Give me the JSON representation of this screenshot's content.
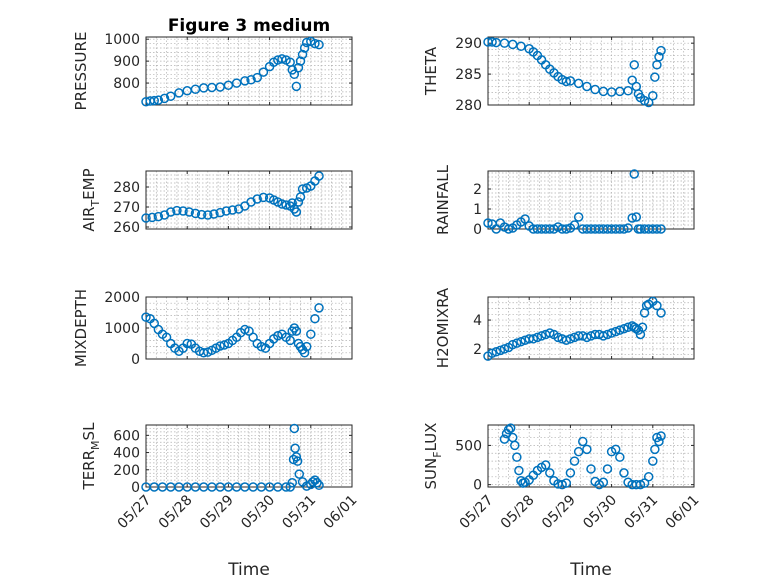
{
  "chart_data": [
    {
      "type": "scatter",
      "title": "Figure 3 medium",
      "ylabel": "PRESSURE",
      "ylabel_sub": "",
      "ylim": [
        700,
        1010
      ],
      "yticks": [
        800,
        900,
        1000
      ],
      "xlim": [
        0,
        5
      ],
      "xticks": [
        0,
        1,
        2,
        3,
        4,
        5
      ],
      "xticklabels": [],
      "xlabel": "",
      "grid": true,
      "series": [
        {
          "x": [
            0,
            0.1,
            0.2,
            0.3,
            0.45,
            0.6,
            0.8,
            1.0,
            1.2,
            1.4,
            1.6,
            1.8,
            2.0,
            2.2,
            2.4,
            2.55,
            2.7,
            2.85,
            3.0,
            3.1,
            3.2,
            3.3,
            3.4,
            3.5,
            3.55,
            3.6,
            3.65,
            3.7,
            3.75,
            3.8,
            3.85,
            3.9,
            4.0,
            4.1,
            4.2
          ],
          "y": [
            715,
            718,
            720,
            722,
            730,
            740,
            755,
            765,
            772,
            778,
            780,
            782,
            790,
            800,
            810,
            815,
            825,
            850,
            875,
            895,
            905,
            910,
            905,
            895,
            860,
            840,
            785,
            870,
            900,
            930,
            960,
            985,
            990,
            980,
            975
          ]
        }
      ]
    },
    {
      "type": "scatter",
      "title": "",
      "ylabel": "THETA",
      "ylabel_sub": "",
      "ylim": [
        280,
        291
      ],
      "yticks": [
        280,
        285,
        290
      ],
      "xlim": [
        0,
        5
      ],
      "xticks": [
        0,
        1,
        2,
        3,
        4,
        5
      ],
      "xticklabels": [],
      "xlabel": "",
      "grid": true,
      "series": [
        {
          "x": [
            0,
            0.1,
            0.2,
            0.4,
            0.6,
            0.8,
            1.0,
            1.1,
            1.2,
            1.3,
            1.4,
            1.5,
            1.6,
            1.7,
            1.8,
            1.9,
            2.0,
            2.2,
            2.4,
            2.6,
            2.8,
            3.0,
            3.2,
            3.4,
            3.5,
            3.55,
            3.6,
            3.65,
            3.7,
            3.8,
            3.9,
            4.0,
            4.05,
            4.1,
            4.15,
            4.2
          ],
          "y": [
            290.2,
            290.2,
            290.1,
            290.0,
            289.8,
            289.5,
            289.1,
            288.6,
            288.0,
            287.3,
            286.5,
            285.8,
            285.2,
            284.6,
            284.1,
            283.8,
            283.9,
            283.5,
            283.0,
            282.5,
            282.2,
            282.1,
            282.2,
            282.3,
            284.0,
            286.5,
            283.0,
            281.8,
            281.2,
            280.7,
            280.4,
            281.5,
            284.5,
            286.5,
            287.8,
            288.8
          ]
        }
      ]
    },
    {
      "type": "scatter",
      "title": "",
      "ylabel": "AIR",
      "ylabel_sub": "T",
      "ylabel_tail": "EMP",
      "ylim": [
        259,
        288
      ],
      "yticks": [
        260,
        270,
        280
      ],
      "xlim": [
        0,
        5
      ],
      "xticks": [
        0,
        1,
        2,
        3,
        4,
        5
      ],
      "xticklabels": [],
      "xlabel": "",
      "grid": true,
      "series": [
        {
          "x": [
            0,
            0.15,
            0.3,
            0.45,
            0.6,
            0.75,
            0.9,
            1.05,
            1.2,
            1.35,
            1.5,
            1.65,
            1.8,
            1.95,
            2.1,
            2.25,
            2.4,
            2.55,
            2.7,
            2.85,
            3.0,
            3.1,
            3.2,
            3.3,
            3.4,
            3.5,
            3.55,
            3.6,
            3.65,
            3.7,
            3.75,
            3.8,
            3.9,
            4.0,
            4.1,
            4.2
          ],
          "y": [
            264.5,
            264.8,
            265.2,
            266.0,
            267.5,
            268.2,
            268.0,
            267.5,
            266.8,
            266.2,
            266.0,
            266.5,
            267.2,
            268.0,
            268.5,
            269.0,
            270.5,
            272.5,
            274.0,
            274.8,
            274.5,
            273.5,
            272.5,
            271.5,
            271.0,
            270.5,
            272.0,
            269.0,
            267.5,
            272.5,
            275.0,
            279.0,
            279.5,
            280.5,
            283.0,
            285.5
          ]
        }
      ]
    },
    {
      "type": "scatter",
      "title": "",
      "ylabel": "RAINFALL",
      "ylabel_sub": "",
      "ylim": [
        0,
        2.9
      ],
      "yticks": [
        0,
        1,
        2
      ],
      "xlim": [
        0,
        5
      ],
      "xticks": [
        0,
        1,
        2,
        3,
        4,
        5
      ],
      "xticklabels": [],
      "xlabel": "",
      "grid": true,
      "series": [
        {
          "x": [
            0,
            0.1,
            0.2,
            0.3,
            0.4,
            0.5,
            0.6,
            0.7,
            0.8,
            0.9,
            1.0,
            1.1,
            1.2,
            1.3,
            1.4,
            1.5,
            1.6,
            1.7,
            1.8,
            1.9,
            2.0,
            2.1,
            2.2,
            2.3,
            2.4,
            2.5,
            2.6,
            2.7,
            2.8,
            2.9,
            3.0,
            3.1,
            3.2,
            3.3,
            3.4,
            3.5,
            3.55,
            3.6,
            3.65,
            3.7,
            3.8,
            3.9,
            4.0,
            4.1,
            4.2
          ],
          "y": [
            0.3,
            0.25,
            0.0,
            0.3,
            0.1,
            0.0,
            0.05,
            0.2,
            0.35,
            0.5,
            0.15,
            0.0,
            0.0,
            0.0,
            0.0,
            0.0,
            0.0,
            0.1,
            0.0,
            0.0,
            0.05,
            0.2,
            0.6,
            0.0,
            0.0,
            0.0,
            0.0,
            0.0,
            0.0,
            0.0,
            0.0,
            0.0,
            0.0,
            0.0,
            0.05,
            0.55,
            2.75,
            0.6,
            0.0,
            0.0,
            0.0,
            0.0,
            0.0,
            0.0,
            0.0
          ]
        }
      ]
    },
    {
      "type": "scatter",
      "title": "",
      "ylabel": "MIXDEPTH",
      "ylabel_sub": "",
      "ylim": [
        0,
        2000
      ],
      "yticks": [
        0,
        1000,
        2000
      ],
      "xlim": [
        0,
        5
      ],
      "xticks": [
        0,
        1,
        2,
        3,
        4,
        5
      ],
      "xticklabels": [],
      "xlabel": "",
      "grid": true,
      "series": [
        {
          "x": [
            0,
            0.1,
            0.2,
            0.3,
            0.4,
            0.5,
            0.6,
            0.7,
            0.8,
            0.9,
            1.0,
            1.1,
            1.2,
            1.3,
            1.4,
            1.5,
            1.6,
            1.7,
            1.8,
            1.9,
            2.0,
            2.1,
            2.2,
            2.3,
            2.4,
            2.5,
            2.6,
            2.7,
            2.8,
            2.9,
            3.0,
            3.1,
            3.2,
            3.3,
            3.4,
            3.5,
            3.55,
            3.6,
            3.65,
            3.7,
            3.75,
            3.8,
            3.85,
            3.9,
            4.0,
            4.1,
            4.2
          ],
          "y": [
            1350,
            1300,
            1150,
            950,
            800,
            700,
            500,
            350,
            250,
            350,
            500,
            480,
            350,
            250,
            200,
            220,
            280,
            350,
            420,
            450,
            500,
            600,
            700,
            850,
            950,
            900,
            700,
            500,
            400,
            350,
            500,
            650,
            750,
            800,
            700,
            600,
            900,
            1000,
            900,
            500,
            400,
            300,
            200,
            400,
            800,
            1300,
            1650
          ]
        }
      ]
    },
    {
      "type": "scatter",
      "title": "",
      "ylabel": "H2OMIXRA",
      "ylabel_sub": "",
      "ylim": [
        1.3,
        5.6
      ],
      "yticks": [
        2,
        4
      ],
      "xlim": [
        0,
        5
      ],
      "xticks": [
        0,
        1,
        2,
        3,
        4,
        5
      ],
      "xticklabels": [],
      "xlabel": "",
      "grid": true,
      "series": [
        {
          "x": [
            0,
            0.1,
            0.2,
            0.3,
            0.4,
            0.5,
            0.6,
            0.7,
            0.8,
            0.9,
            1.0,
            1.1,
            1.2,
            1.3,
            1.4,
            1.5,
            1.6,
            1.7,
            1.8,
            1.9,
            2.0,
            2.1,
            2.2,
            2.3,
            2.4,
            2.5,
            2.6,
            2.7,
            2.8,
            2.9,
            3.0,
            3.1,
            3.2,
            3.3,
            3.4,
            3.5,
            3.55,
            3.6,
            3.65,
            3.7,
            3.75,
            3.8,
            3.85,
            3.9,
            4.0,
            4.1,
            4.2
          ],
          "y": [
            1.5,
            1.7,
            1.8,
            1.9,
            2.0,
            2.1,
            2.3,
            2.4,
            2.5,
            2.6,
            2.7,
            2.7,
            2.8,
            2.9,
            3.0,
            3.1,
            3.0,
            2.8,
            2.7,
            2.6,
            2.7,
            2.8,
            2.9,
            2.9,
            2.8,
            2.9,
            3.0,
            3.0,
            2.9,
            3.0,
            3.1,
            3.2,
            3.3,
            3.4,
            3.5,
            3.6,
            3.5,
            3.4,
            3.3,
            3.0,
            3.5,
            4.5,
            5.0,
            5.1,
            5.3,
            5.0,
            4.5
          ]
        }
      ]
    },
    {
      "type": "scatter",
      "title": "",
      "ylabel": "TERR",
      "ylabel_sub": "M",
      "ylabel_tail": "SL",
      "ylim": [
        0,
        720
      ],
      "yticks": [
        0,
        200,
        400,
        600
      ],
      "xlim": [
        0,
        5
      ],
      "xticks": [
        0,
        1,
        2,
        3,
        4,
        5
      ],
      "xticklabels": [
        "05/27",
        "05/28",
        "05/29",
        "05/30",
        "05/31",
        "06/01"
      ],
      "xlabel": "Time",
      "grid": true,
      "series": [
        {
          "x": [
            0,
            0.2,
            0.4,
            0.6,
            0.8,
            1.0,
            1.2,
            1.4,
            1.6,
            1.8,
            2.0,
            2.2,
            2.4,
            2.6,
            2.8,
            3.0,
            3.2,
            3.4,
            3.5,
            3.55,
            3.58,
            3.6,
            3.62,
            3.65,
            3.68,
            3.72,
            3.8,
            3.9,
            4.0,
            4.05,
            4.1,
            4.15,
            4.2
          ],
          "y": [
            0,
            0,
            0,
            0,
            0,
            0,
            0,
            0,
            0,
            0,
            0,
            0,
            0,
            0,
            0,
            0,
            0,
            0,
            0,
            50,
            320,
            680,
            450,
            350,
            300,
            150,
            60,
            10,
            30,
            60,
            80,
            50,
            20
          ]
        }
      ]
    },
    {
      "type": "scatter",
      "title": "",
      "ylabel": "SUN",
      "ylabel_sub": "F",
      "ylabel_tail": "LUX",
      "ylim": [
        -30,
        760
      ],
      "yticks": [
        0,
        500
      ],
      "xlim": [
        0,
        5
      ],
      "xticks": [
        0,
        1,
        2,
        3,
        4,
        5
      ],
      "xticklabels": [
        "05/27",
        "05/28",
        "05/29",
        "05/30",
        "05/31",
        "06/01"
      ],
      "xlabel": "Time",
      "grid": true,
      "series": [
        {
          "x": [
            0.4,
            0.45,
            0.5,
            0.55,
            0.6,
            0.65,
            0.7,
            0.75,
            0.8,
            0.85,
            0.9,
            1.0,
            1.1,
            1.2,
            1.3,
            1.4,
            1.5,
            1.6,
            1.7,
            1.8,
            1.9,
            2.0,
            2.1,
            2.2,
            2.3,
            2.4,
            2.5,
            2.6,
            2.7,
            2.8,
            2.9,
            3.0,
            3.1,
            3.2,
            3.3,
            3.4,
            3.5,
            3.6,
            3.7,
            3.8,
            3.9,
            4.0,
            4.05,
            4.1,
            4.15,
            4.2
          ],
          "y": [
            580,
            650,
            700,
            720,
            600,
            500,
            350,
            180,
            50,
            20,
            30,
            60,
            120,
            180,
            220,
            250,
            150,
            50,
            10,
            0,
            20,
            150,
            300,
            420,
            550,
            450,
            200,
            40,
            0,
            30,
            200,
            420,
            450,
            350,
            150,
            30,
            0,
            0,
            0,
            20,
            100,
            300,
            450,
            600,
            550,
            620
          ]
        }
      ]
    }
  ]
}
